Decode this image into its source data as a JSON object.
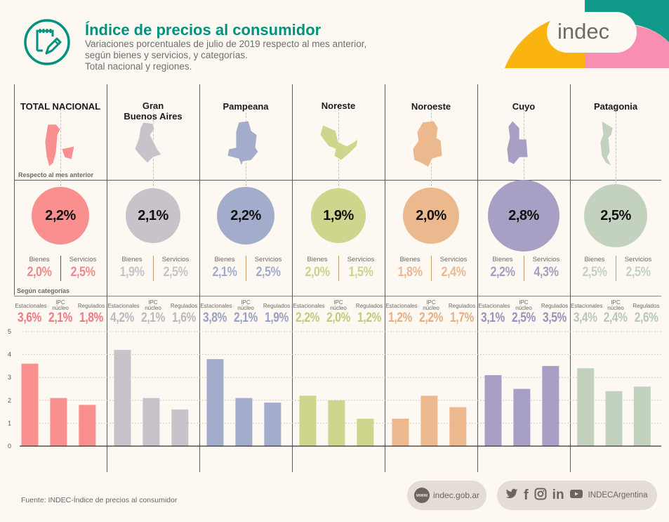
{
  "header": {
    "title": "Índice de precios al consumidor",
    "subtitle_lines": [
      "Variaciones porcentuales de julio de 2019 respecto al mes anterior,",
      "según bienes y servicios, y categorías.",
      "Total nacional y regiones."
    ],
    "brand": "indec",
    "colors": {
      "title": "#00917f",
      "brand_yellow": "#fbb30f",
      "brand_teal": "#0f9a8a",
      "brand_pink": "#f88fb1"
    }
  },
  "labels": {
    "respecto": "Respecto al mes anterior",
    "segun": "Según categorías",
    "bienes": "Bienes",
    "servicios": "Servicios",
    "estacionales": "Estacionales",
    "ipc1": "IPC",
    "ipc2": "núcleo",
    "regulados": "Regulados"
  },
  "regions": [
    {
      "name": "TOTAL NACIONAL",
      "color": "#f98f8f",
      "bs_color": "#ef8a8e",
      "cat_color": "#ef7a80",
      "total": "2,2%",
      "bienes": "2,0%",
      "servicios": "2,5%",
      "estacionales": "3,6%",
      "ipc_nucleo": "2,1%",
      "regulados": "1,8%"
    },
    {
      "name": "Gran Buenos Aires",
      "color": "#c8c2cb",
      "bs_color": "#c7c2c8",
      "cat_color": "#bdb7c0",
      "total": "2,1%",
      "bienes": "1,9%",
      "servicios": "2,5%",
      "estacionales": "4,2%",
      "ipc_nucleo": "2,1%",
      "regulados": "1,6%"
    },
    {
      "name": "Pampeana",
      "color": "#a3adcb",
      "bs_color": "#a2abca",
      "cat_color": "#97a1c4",
      "total": "2,2%",
      "bienes": "2,1%",
      "servicios": "2,5%",
      "estacionales": "3,8%",
      "ipc_nucleo": "2,1%",
      "regulados": "1,9%"
    },
    {
      "name": "Noreste",
      "color": "#cdd68c",
      "bs_color": "#cbd38d",
      "cat_color": "#c2cb7a",
      "total": "1,9%",
      "bienes": "2,0%",
      "servicios": "1,5%",
      "estacionales": "2,2%",
      "ipc_nucleo": "2,0%",
      "regulados": "1,2%"
    },
    {
      "name": "Noroeste",
      "color": "#ecb88d",
      "bs_color": "#eab891",
      "cat_color": "#e7af82",
      "total": "2,0%",
      "bienes": "1,8%",
      "servicios": "2,4%",
      "estacionales": "1,2%",
      "ipc_nucleo": "2,2%",
      "regulados": "1,7%"
    },
    {
      "name": "Cuyo",
      "color": "#a89fc4",
      "bs_color": "#a59dc2",
      "cat_color": "#9a90bb",
      "total": "2,8%",
      "bienes": "2,2%",
      "servicios": "4,3%",
      "estacionales": "3,1%",
      "ipc_nucleo": "2,5%",
      "regulados": "3,5%"
    },
    {
      "name": "Patagonia",
      "color": "#c2d2bf",
      "bs_color": "#c4d0c1",
      "cat_color": "#b8c8b4",
      "total": "2,5%",
      "bienes": "2,5%",
      "servicios": "2,5%",
      "estacionales": "3,4%",
      "ipc_nucleo": "2,4%",
      "regulados": "2,6%"
    }
  ],
  "chart_data": {
    "type": "bar",
    "title": "Según categorías",
    "categories": [
      "Estacionales",
      "IPC núcleo",
      "Regulados"
    ],
    "groups": [
      "TOTAL NACIONAL",
      "Gran Buenos Aires",
      "Pampeana",
      "Noreste",
      "Noroeste",
      "Cuyo",
      "Patagonia"
    ],
    "series": [
      {
        "name": "TOTAL NACIONAL",
        "values": [
          3.6,
          2.1,
          1.8
        ]
      },
      {
        "name": "Gran Buenos Aires",
        "values": [
          4.2,
          2.1,
          1.6
        ]
      },
      {
        "name": "Pampeana",
        "values": [
          3.8,
          2.1,
          1.9
        ]
      },
      {
        "name": "Noreste",
        "values": [
          2.2,
          2.0,
          1.2
        ]
      },
      {
        "name": "Noroeste",
        "values": [
          1.2,
          2.2,
          1.7
        ]
      },
      {
        "name": "Cuyo",
        "values": [
          3.1,
          2.5,
          3.5
        ]
      },
      {
        "name": "Patagonia",
        "values": [
          3.4,
          2.4,
          2.6
        ]
      }
    ],
    "ylim": [
      0,
      5
    ],
    "yticks": [
      0,
      1,
      2,
      3,
      4,
      5
    ],
    "ylabel": "",
    "xlabel": "",
    "grid": true,
    "bubble_totals": [
      2.2,
      2.1,
      2.2,
      1.9,
      2.0,
      2.8,
      2.5
    ]
  },
  "footer": {
    "source": "Fuente: INDEC-Índice de precios al consumidor",
    "website": "indec.gob.ar",
    "www": "www",
    "social_handle": "INDECArgentina",
    "social_icons": [
      "twitter-icon",
      "facebook-icon",
      "instagram-icon",
      "linkedin-icon",
      "youtube-icon"
    ]
  }
}
